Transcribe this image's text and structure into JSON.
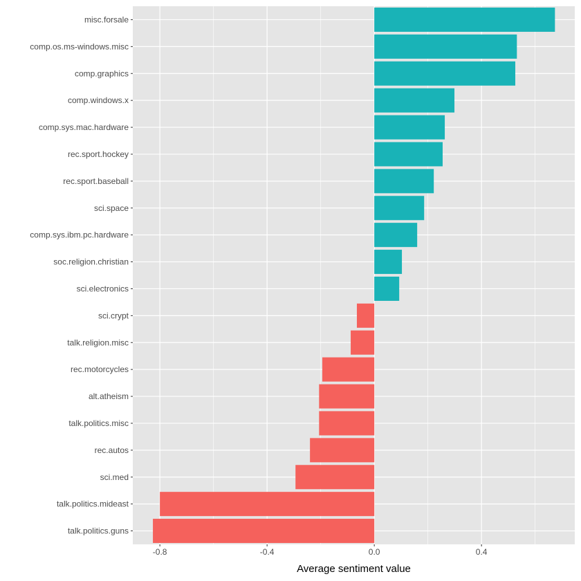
{
  "chart_data": {
    "type": "bar",
    "orientation": "horizontal",
    "title": "",
    "xlabel": "Average sentiment value",
    "ylabel": "",
    "xlim": [
      -0.901,
      0.748
    ],
    "xticks": [
      -0.8,
      -0.4,
      0.0,
      0.4
    ],
    "xtick_labels": [
      "-0.8",
      "-0.4",
      "0.0",
      "0.4"
    ],
    "grid": true,
    "legend": "none",
    "colors": {
      "positive": "#19B3B7",
      "negative": "#F5615C",
      "panel": "#E5E5E5",
      "grid": "#FFFFFF"
    },
    "categories": [
      "misc.forsale",
      "comp.os.ms-windows.misc",
      "comp.graphics",
      "comp.windows.x",
      "comp.sys.mac.hardware",
      "rec.sport.hockey",
      "rec.sport.baseball",
      "sci.space",
      "comp.sys.ibm.pc.hardware",
      "soc.religion.christian",
      "sci.electronics",
      "sci.crypt",
      "talk.religion.misc",
      "rec.motorcycles",
      "alt.atheism",
      "talk.politics.misc",
      "rec.autos",
      "sci.med",
      "talk.politics.mideast",
      "talk.politics.guns"
    ],
    "values": [
      0.674,
      0.532,
      0.526,
      0.299,
      0.263,
      0.255,
      0.222,
      0.186,
      0.16,
      0.103,
      0.093,
      -0.065,
      -0.088,
      -0.194,
      -0.206,
      -0.206,
      -0.24,
      -0.294,
      -0.8,
      -0.826
    ]
  }
}
